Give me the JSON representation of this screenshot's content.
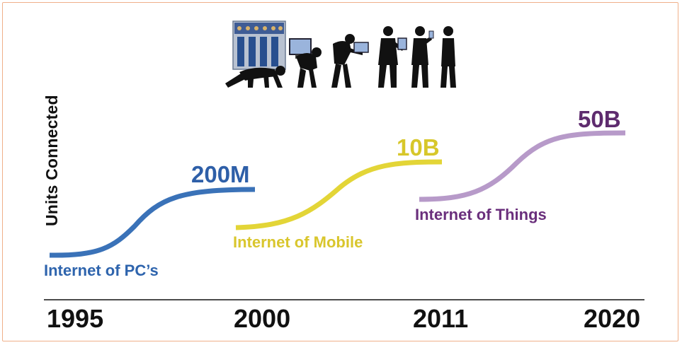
{
  "y_axis_label": "Units Connected",
  "eras": [
    {
      "name": "Internet of PC’s",
      "value": "200M",
      "color": "#3a72b8"
    },
    {
      "name": "Internet of Mobile",
      "value": "10B",
      "color": "#e3d537"
    },
    {
      "name": "Internet of Things",
      "value": "50B",
      "color": "#b79ac9"
    }
  ],
  "value_label_colors": [
    "#2e5fa8",
    "#d7c72a",
    "#5e2b6e"
  ],
  "era_label_colors": [
    "#2e64ad",
    "#d9c62d",
    "#6a2f7c"
  ],
  "years": [
    "1995",
    "2000",
    "2011",
    "2020"
  ],
  "evolution_figures": [
    "crawling-man-icon",
    "hunched-man-desktop-icon",
    "bent-man-laptop-icon",
    "standing-man-tablet-icon",
    "standing-man-phone-icon",
    "upright-man-icon"
  ],
  "server_rack_icon": "server-rack-icon",
  "frame_color": "#f0b08a"
}
